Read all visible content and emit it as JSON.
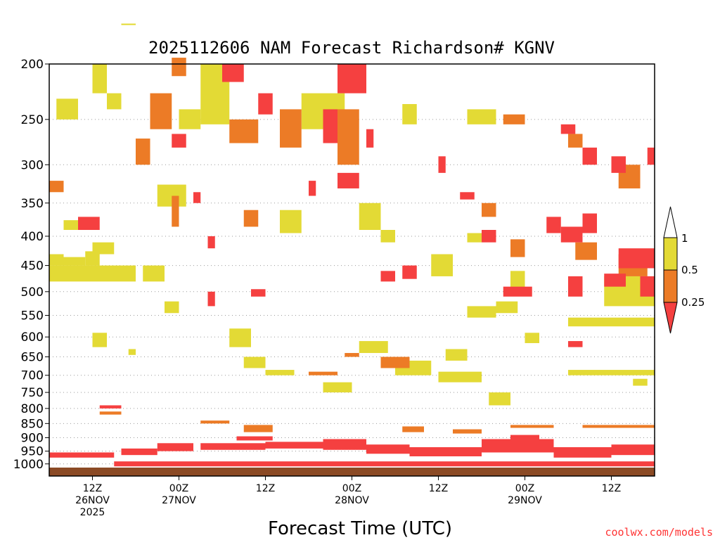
{
  "chart_data": {
    "type": "heatmap",
    "title": "2025112606 NAM Forecast Richardson# KGNV",
    "xlabel": "Forecast Time (UTC)",
    "ylabel": "",
    "y_axis": {
      "scale": "log-pressure",
      "range_hPa": [
        200,
        1050
      ],
      "tick_values": [
        200,
        250,
        300,
        350,
        400,
        450,
        500,
        550,
        600,
        650,
        700,
        750,
        800,
        850,
        900,
        950,
        1000
      ],
      "tick_labels": [
        "200",
        "250",
        "300",
        "350",
        "400",
        "450",
        "500",
        "550",
        "600",
        "650",
        "700",
        "750",
        "800",
        "850",
        "900",
        "950",
        "1000"
      ]
    },
    "x_axis": {
      "unit": "forecast hour",
      "range_hr": [
        0,
        84
      ],
      "ticks": [
        {
          "hour": 6,
          "lines": [
            "12Z",
            "26NOV",
            "2025"
          ]
        },
        {
          "hour": 18,
          "lines": [
            "00Z",
            "27NOV"
          ]
        },
        {
          "hour": 30,
          "lines": [
            "12Z"
          ]
        },
        {
          "hour": 42,
          "lines": [
            "00Z",
            "28NOV"
          ]
        },
        {
          "hour": 54,
          "lines": [
            "12Z"
          ]
        },
        {
          "hour": 66,
          "lines": [
            "00Z",
            "29NOV"
          ]
        },
        {
          "hour": 78,
          "lines": [
            "12Z"
          ]
        }
      ]
    },
    "gridlines": "dotted horizontal at pressure ticks",
    "legend": {
      "position": "right",
      "levels": [
        {
          "label": "1",
          "value": 1.0
        },
        {
          "label": "0.5",
          "value": 0.5
        },
        {
          "label": "0.25",
          "value": 0.25
        }
      ],
      "colors": {
        "above_1": "#ffffff",
        "0.5_to_1": "#e3da35",
        "0.25_to_0.5": "#ec7b26",
        "below_0.25": "#f54040"
      }
    },
    "colors": {
      "y": "#e3da35",
      "o": "#ec7b26",
      "r": "#f54040",
      "ground": "#8b4a25"
    },
    "bins": [
      {
        "level": "0.5-1",
        "code": "y",
        "regions_hr_hPa": [
          [
            6,
            8,
            200,
            225
          ],
          [
            8,
            10,
            225,
            240
          ],
          [
            1,
            4,
            230,
            250
          ],
          [
            21,
            25,
            200,
            255
          ],
          [
            18,
            21,
            240,
            260
          ],
          [
            35,
            41,
            225,
            260
          ],
          [
            49,
            51,
            235,
            255
          ],
          [
            58,
            62,
            240,
            255
          ],
          [
            0,
            12,
            450,
            480
          ],
          [
            5,
            7,
            425,
            450
          ],
          [
            2,
            5,
            435,
            450
          ],
          [
            0,
            2,
            430,
            450
          ],
          [
            13,
            16,
            450,
            480
          ],
          [
            15,
            19,
            325,
            355
          ],
          [
            2,
            5,
            375,
            390
          ],
          [
            6,
            9,
            410,
            430
          ],
          [
            6,
            8,
            590,
            625
          ],
          [
            11,
            12,
            630,
            645
          ],
          [
            16,
            18,
            520,
            545
          ],
          [
            25,
            28,
            580,
            625
          ],
          [
            27,
            30,
            650,
            680
          ],
          [
            30,
            34,
            685,
            700
          ],
          [
            38,
            42,
            720,
            750
          ],
          [
            43,
            47,
            610,
            640
          ],
          [
            48,
            53,
            660,
            700
          ],
          [
            54,
            60,
            690,
            720
          ],
          [
            61,
            64,
            750,
            790
          ],
          [
            62,
            65,
            520,
            545
          ],
          [
            66,
            68,
            590,
            615
          ],
          [
            72,
            84,
            685,
            700
          ],
          [
            81,
            83,
            710,
            730
          ],
          [
            72,
            84,
            555,
            575
          ],
          [
            77,
            84,
            470,
            530
          ],
          [
            55,
            58,
            630,
            660
          ],
          [
            58,
            62,
            530,
            555
          ],
          [
            64,
            66,
            460,
            500
          ],
          [
            53,
            56,
            430,
            470
          ],
          [
            43,
            46,
            350,
            390
          ],
          [
            32,
            35,
            360,
            395
          ],
          [
            58,
            60,
            395,
            410
          ],
          [
            46,
            48,
            390,
            410
          ],
          [
            10,
            12,
            170,
            171
          ]
        ]
      },
      {
        "level": "0.25-0.5",
        "code": "o",
        "regions_hr_hPa": [
          [
            14,
            17,
            225,
            260
          ],
          [
            12,
            14,
            270,
            300
          ],
          [
            25,
            29,
            250,
            275
          ],
          [
            32,
            35,
            240,
            280
          ],
          [
            40,
            43,
            240,
            300
          ],
          [
            63,
            66,
            245,
            255
          ],
          [
            72,
            74,
            265,
            280
          ],
          [
            79,
            82,
            300,
            330
          ],
          [
            17,
            18,
            340,
            385
          ],
          [
            27,
            29,
            360,
            385
          ],
          [
            60,
            62,
            350,
            370
          ],
          [
            7,
            10,
            810,
            820
          ],
          [
            21,
            25,
            840,
            850
          ],
          [
            27,
            31,
            855,
            880
          ],
          [
            36,
            40,
            690,
            700
          ],
          [
            46,
            50,
            650,
            680
          ],
          [
            49,
            52,
            860,
            880
          ],
          [
            56,
            60,
            870,
            885
          ],
          [
            64,
            70,
            855,
            865
          ],
          [
            74,
            84,
            855,
            865
          ],
          [
            0,
            2,
            320,
            335
          ],
          [
            41,
            43,
            640,
            650
          ],
          [
            73,
            76,
            410,
            440
          ],
          [
            79,
            83,
            430,
            470
          ],
          [
            17,
            19,
            195,
            210
          ],
          [
            64,
            66,
            405,
            435
          ]
        ]
      },
      {
        "level": "<0.25",
        "code": "r",
        "regions_hr_hPa": [
          [
            24,
            27,
            200,
            215
          ],
          [
            40,
            44,
            200,
            225
          ],
          [
            38,
            40,
            240,
            275
          ],
          [
            29,
            31,
            225,
            245
          ],
          [
            17,
            19,
            265,
            280
          ],
          [
            4,
            7,
            370,
            390
          ],
          [
            20,
            21,
            335,
            350
          ],
          [
            22,
            23,
            400,
            420
          ],
          [
            22,
            23,
            500,
            530
          ],
          [
            28,
            30,
            495,
            510
          ],
          [
            46,
            48,
            460,
            480
          ],
          [
            49,
            51,
            450,
            475
          ],
          [
            57,
            59,
            335,
            345
          ],
          [
            60,
            62,
            390,
            410
          ],
          [
            63,
            67,
            490,
            510
          ],
          [
            69,
            71,
            370,
            395
          ],
          [
            71,
            74,
            385,
            410
          ],
          [
            74,
            76,
            365,
            395
          ],
          [
            77,
            80,
            465,
            490
          ],
          [
            79,
            84,
            420,
            455
          ],
          [
            78,
            80,
            290,
            310
          ],
          [
            82,
            84,
            470,
            510
          ],
          [
            72,
            74,
            470,
            510
          ],
          [
            71,
            73,
            255,
            265
          ],
          [
            74,
            76,
            280,
            300
          ],
          [
            83,
            84,
            280,
            300
          ],
          [
            72,
            74,
            610,
            625
          ],
          [
            7,
            10,
            790,
            800
          ],
          [
            40,
            43,
            310,
            330
          ],
          [
            44,
            45,
            260,
            280
          ],
          [
            36,
            37,
            320,
            340
          ],
          [
            54,
            55,
            290,
            310
          ]
        ]
      },
      {
        "level": "boundary-layer",
        "code": "r",
        "regions_hr_hPa": [
          [
            9,
            84,
            990,
            1010
          ],
          [
            0,
            9,
            955,
            975
          ],
          [
            10,
            15,
            940,
            965
          ],
          [
            15,
            20,
            920,
            950
          ],
          [
            21,
            30,
            920,
            945
          ],
          [
            30,
            38,
            915,
            940
          ],
          [
            38,
            44,
            905,
            945
          ],
          [
            44,
            50,
            925,
            960
          ],
          [
            50,
            60,
            935,
            970
          ],
          [
            60,
            70,
            905,
            955
          ],
          [
            70,
            78,
            935,
            975
          ],
          [
            78,
            84,
            925,
            965
          ],
          [
            26,
            31,
            895,
            910
          ],
          [
            64,
            68,
            890,
            905
          ]
        ]
      }
    ]
  },
  "credit": "coolwx.com/models"
}
